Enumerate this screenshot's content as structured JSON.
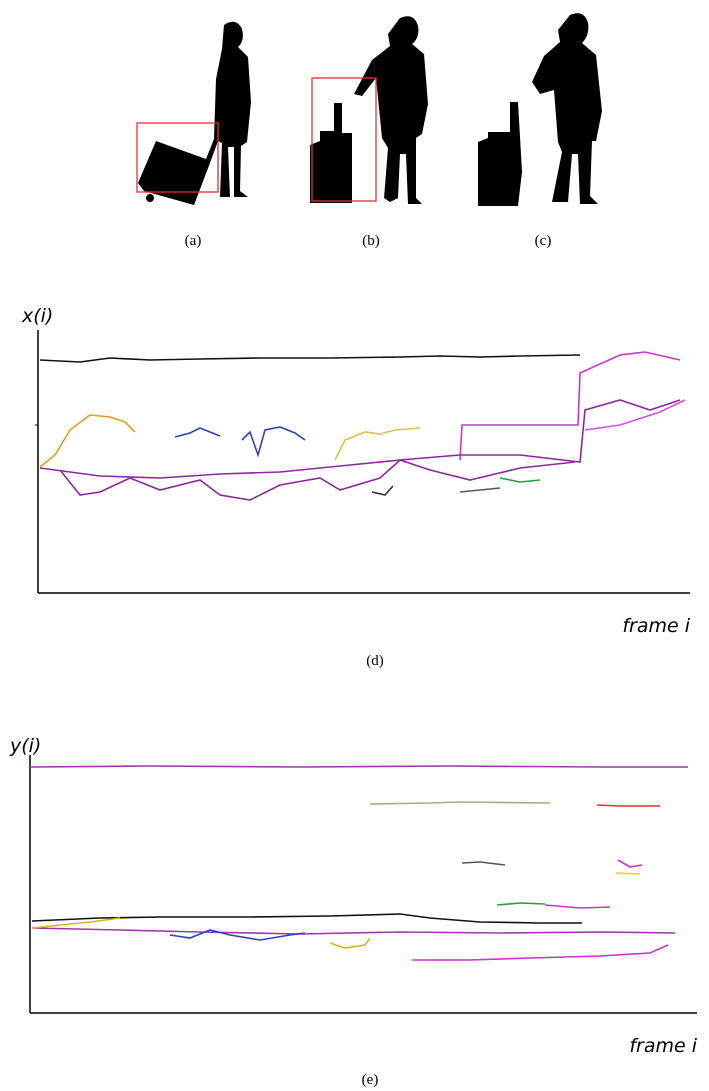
{
  "panels": [
    {
      "label": "(a)"
    },
    {
      "label": "(b)"
    },
    {
      "label": "(c)"
    }
  ],
  "plots": [
    {
      "y_label": "x(i)",
      "x_label": "frame i",
      "caption": "(d)"
    },
    {
      "y_label": "y(i)",
      "x_label": "frame i",
      "caption": "(e)"
    }
  ]
}
